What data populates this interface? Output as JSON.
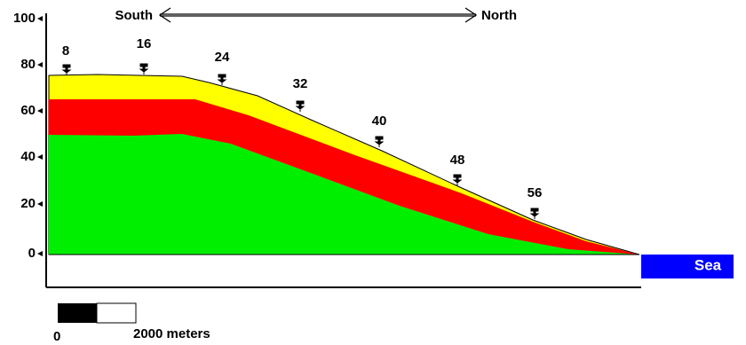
{
  "axis": {
    "ticks": [
      "100",
      "80",
      "60",
      "40",
      "20",
      "0"
    ]
  },
  "direction": {
    "left": "South",
    "right": "North"
  },
  "wells": [
    "8",
    "16",
    "24",
    "32",
    "40",
    "48",
    "56"
  ],
  "sea": "Sea",
  "scale": {
    "start": "0",
    "end": "2000 meters"
  }
}
